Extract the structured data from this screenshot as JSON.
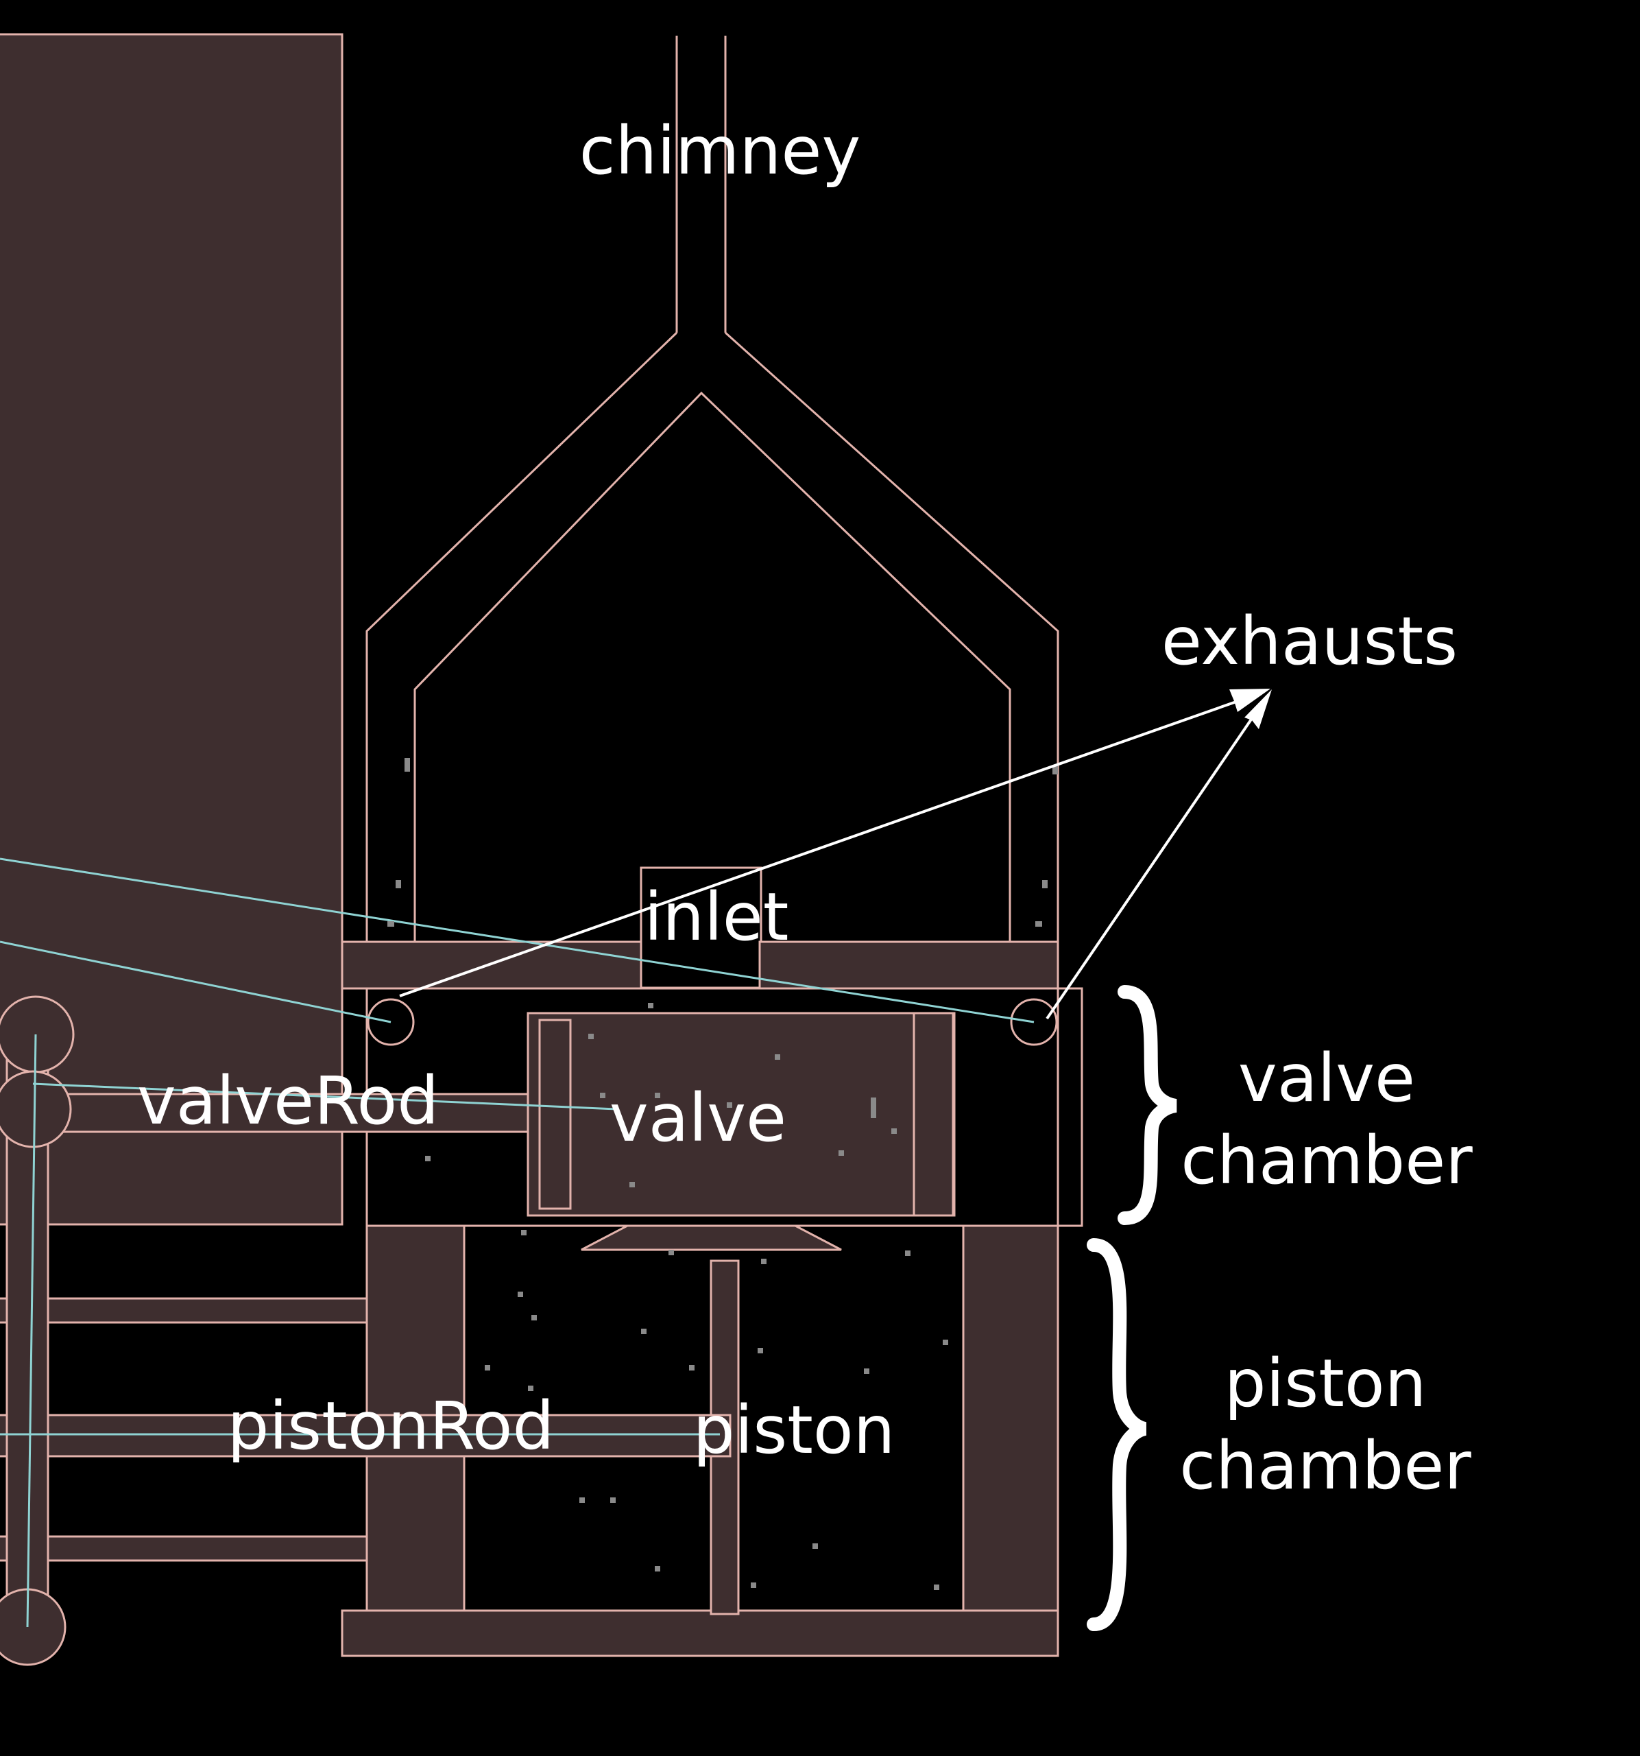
{
  "labels": {
    "chimney": "chimney",
    "exhausts": "exhausts",
    "inlet": "inlet",
    "valve_rod": "valveRod",
    "valve": "valve",
    "valve_chamber_1": "valve",
    "valve_chamber_2": "chamber",
    "piston_rod": "pistonRod",
    "piston": "piston",
    "piston_chamber_1": "piston",
    "piston_chamber_2": "chamber"
  },
  "colors": {
    "background": "#000000",
    "part_fill": "#3e2e2f",
    "part_outline": "#e3b3ac",
    "rod_line": "#8fd3d3",
    "label_text": "#ffffff"
  }
}
